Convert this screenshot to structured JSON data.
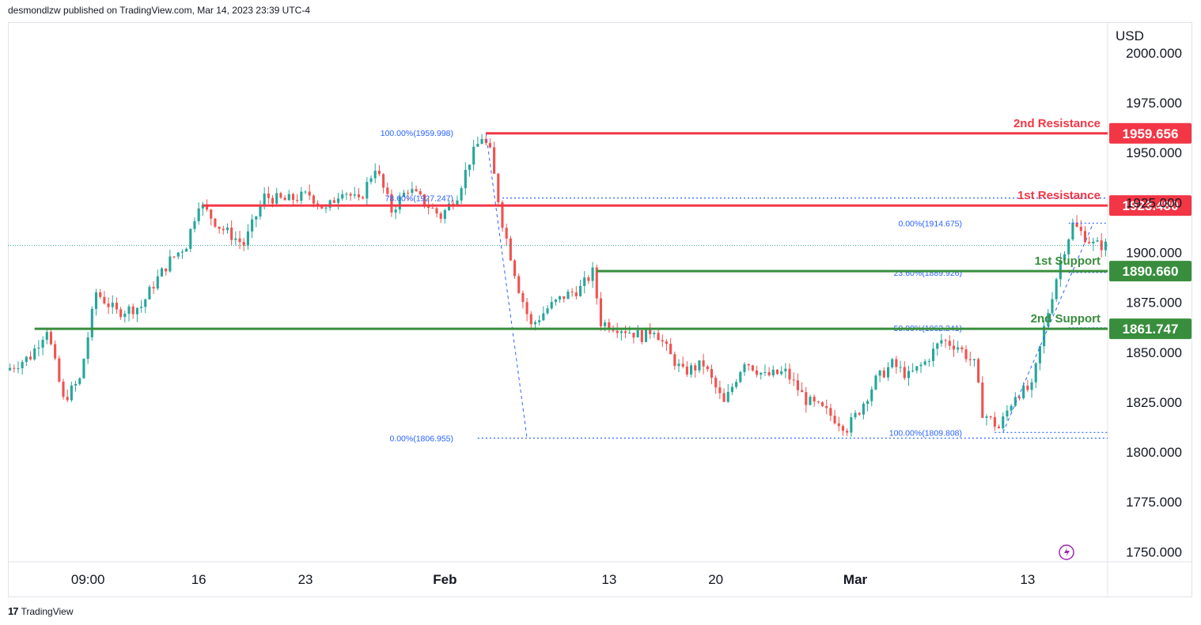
{
  "header": {
    "published": "desmondlzw published on TradingView.com, Mar 14, 2023 23:39 UTC-4"
  },
  "footer": {
    "brand": "TradingView",
    "logo_glyph": "17"
  },
  "colors": {
    "resistance": "#f23645",
    "support": "#388e3c",
    "fib": "#2962ff",
    "up": "#26a69a",
    "down": "#ef5350",
    "grid": "#f0f3fa",
    "axis_text": "#131722",
    "flash_icon": "#9c27b0"
  },
  "chart_data": {
    "type": "candlestick",
    "symbol_currency": "USD",
    "ylim": [
      1745,
      2015
    ],
    "y_ticks": [
      "2000.000",
      "1975.000",
      "1950.000",
      "1925.000",
      "1900.000",
      "1875.000",
      "1850.000",
      "1825.000",
      "1800.000",
      "1775.000",
      "1750.000"
    ],
    "y_tick_values": [
      2000,
      1975,
      1950,
      1925,
      1900,
      1875,
      1850,
      1825,
      1800,
      1775,
      1750
    ],
    "x_ticks": [
      "09:00",
      "16",
      "23",
      "Feb",
      "13",
      "20",
      "Mar",
      "13"
    ],
    "x_tick_bar_index": [
      19,
      46,
      72,
      106,
      146,
      172,
      206,
      248
    ],
    "bar_count": 268,
    "levels": [
      {
        "label": "2nd Resistance",
        "value": 1959.656,
        "price_text": "1959.656",
        "kind": "resistance",
        "start_bar": 116
      },
      {
        "label": "1st Resistance",
        "value": 1923.48,
        "price_text": "1923.480",
        "kind": "resistance",
        "start_bar": 47
      },
      {
        "label": "1st Support",
        "value": 1890.66,
        "price_text": "1890.660",
        "kind": "support",
        "start_bar": 143
      },
      {
        "label": "2nd Support",
        "value": 1861.747,
        "price_text": "1861.747",
        "kind": "support",
        "start_bar": 6
      }
    ],
    "fib_labels": [
      {
        "text": "100.00%(1959.998)",
        "value": 1959.998
      },
      {
        "text": "78.60%(1927.247)",
        "value": 1927.247
      },
      {
        "text": "0.00%(1806.955)",
        "value": 1806.955
      },
      {
        "text": "0.00%(1914.675)",
        "value": 1914.675
      },
      {
        "text": "23.60%(1889.926)",
        "value": 1889.926
      },
      {
        "text": "50.00%(1862.241)",
        "value": 1862.241
      },
      {
        "text": "100.00%(1809.808)",
        "value": 1809.808
      }
    ],
    "last_price": 1903.5,
    "swing_points": [
      [
        0,
        1841
      ],
      [
        6,
        1848
      ],
      [
        10,
        1862
      ],
      [
        14,
        1826
      ],
      [
        18,
        1836
      ],
      [
        22,
        1880
      ],
      [
        27,
        1870
      ],
      [
        33,
        1873
      ],
      [
        36,
        1884
      ],
      [
        40,
        1896
      ],
      [
        44,
        1904
      ],
      [
        47,
        1925
      ],
      [
        52,
        1913
      ],
      [
        58,
        1904
      ],
      [
        63,
        1928
      ],
      [
        68,
        1926
      ],
      [
        74,
        1929
      ],
      [
        78,
        1921
      ],
      [
        82,
        1932
      ],
      [
        86,
        1925
      ],
      [
        90,
        1943
      ],
      [
        94,
        1921
      ],
      [
        98,
        1932
      ],
      [
        102,
        1925
      ],
      [
        106,
        1918
      ],
      [
        110,
        1929
      ],
      [
        113,
        1946
      ],
      [
        116,
        1958
      ],
      [
        118,
        1950
      ],
      [
        121,
        1915
      ],
      [
        125,
        1882
      ],
      [
        128,
        1863
      ],
      [
        132,
        1872
      ],
      [
        136,
        1878
      ],
      [
        140,
        1882
      ],
      [
        143,
        1890
      ],
      [
        145,
        1865
      ],
      [
        150,
        1862
      ],
      [
        155,
        1858
      ],
      [
        158,
        1862
      ],
      [
        162,
        1848
      ],
      [
        165,
        1840
      ],
      [
        170,
        1844
      ],
      [
        175,
        1824
      ],
      [
        180,
        1846
      ],
      [
        185,
        1838
      ],
      [
        190,
        1840
      ],
      [
        195,
        1826
      ],
      [
        200,
        1820
      ],
      [
        205,
        1812
      ],
      [
        208,
        1821
      ],
      [
        212,
        1836
      ],
      [
        216,
        1844
      ],
      [
        220,
        1838
      ],
      [
        224,
        1845
      ],
      [
        228,
        1856
      ],
      [
        232,
        1853
      ],
      [
        236,
        1844
      ],
      [
        238,
        1820
      ],
      [
        242,
        1812
      ],
      [
        246,
        1829
      ],
      [
        250,
        1832
      ],
      [
        253,
        1862
      ],
      [
        257,
        1896
      ],
      [
        260,
        1914
      ],
      [
        262,
        1910
      ],
      [
        265,
        1904
      ],
      [
        267,
        1903.5
      ]
    ]
  }
}
